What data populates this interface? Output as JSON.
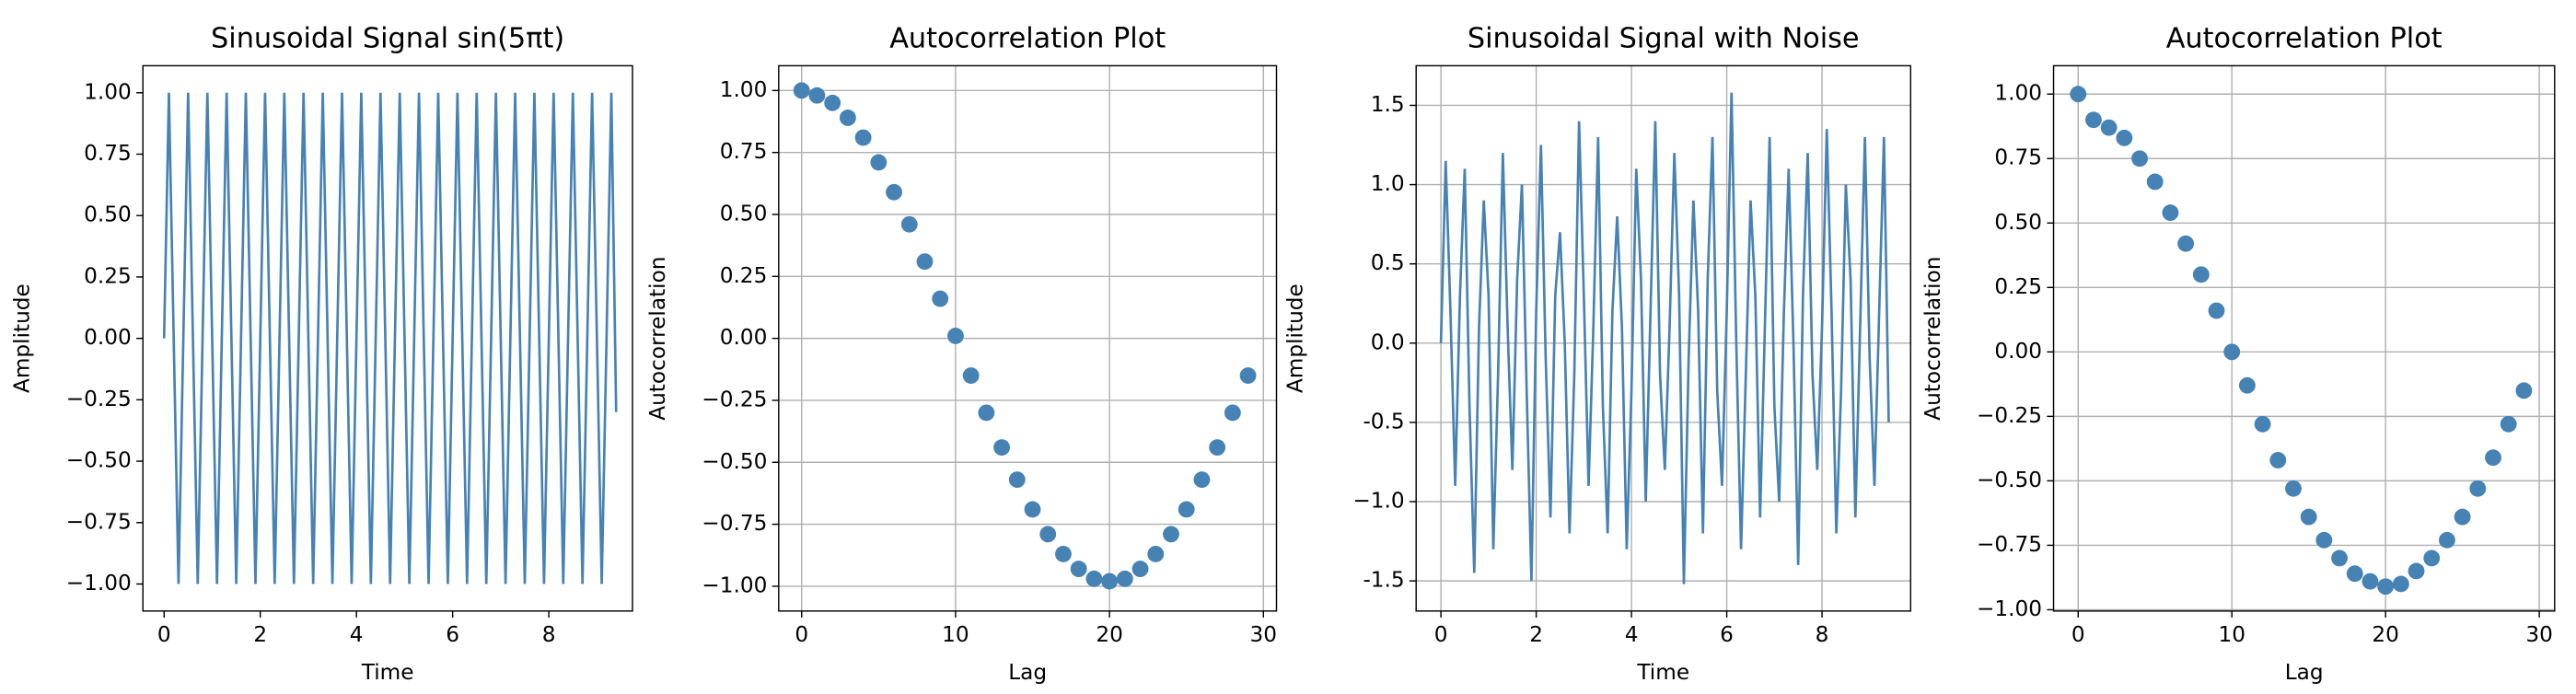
{
  "chart_data": [
    {
      "type": "line",
      "title": "Sinusoidal Signal sin(5πt)",
      "xlabel": "Time",
      "ylabel": "Amplitude",
      "color": "#4682b4",
      "grid": false,
      "x": [
        0,
        0.1,
        0.2,
        0.3,
        0.4,
        0.5,
        0.6,
        0.7,
        0.8,
        0.9,
        1,
        1.1,
        1.2,
        1.3,
        1.4,
        1.5,
        1.6,
        1.7,
        1.8,
        1.9,
        2,
        2.1,
        2.2,
        2.3,
        2.4,
        2.5,
        2.6,
        2.7,
        2.8,
        2.9,
        3,
        3.1,
        3.2,
        3.3,
        3.4,
        3.5,
        3.6,
        3.7,
        3.8,
        3.9,
        4,
        4.1,
        4.2,
        4.3,
        4.4,
        4.5,
        4.6,
        4.7,
        4.8,
        4.9,
        5,
        5.1,
        5.2,
        5.3,
        5.4,
        5.5,
        5.6,
        5.7,
        5.8,
        5.9,
        6,
        6.1,
        6.2,
        6.3,
        6.4,
        6.5,
        6.6,
        6.7,
        6.8,
        6.9,
        7,
        7.1,
        7.2,
        7.3,
        7.4,
        7.5,
        7.6,
        7.7,
        7.8,
        7.9,
        8,
        8.1,
        8.2,
        8.3,
        8.4,
        8.5,
        8.6,
        8.7,
        8.8,
        8.9,
        9,
        9.1,
        9.2,
        9.3,
        9.4
      ],
      "values": [
        0,
        1,
        0,
        -1,
        0,
        1,
        0,
        -1,
        0,
        1,
        0,
        -1,
        0,
        1,
        0,
        -1,
        0,
        1,
        0,
        -1,
        0,
        1,
        0,
        -1,
        0,
        1,
        0,
        -1,
        0,
        1,
        0,
        -1,
        0,
        1,
        0,
        -1,
        0,
        1,
        0,
        -1,
        0,
        1,
        0,
        -1,
        0,
        1,
        0,
        -1,
        0,
        1,
        0,
        -1,
        0,
        1,
        0,
        -1,
        0,
        1,
        0,
        -1,
        0,
        1,
        0,
        -1,
        0,
        1,
        0,
        -1,
        0,
        1,
        0,
        -1,
        0,
        1,
        0,
        -1,
        0,
        1,
        0,
        -1,
        0,
        1,
        0,
        -1,
        0,
        1,
        0,
        -1,
        0,
        1,
        0,
        -1,
        0,
        1,
        -0.3
      ],
      "xlim": [
        -0.44,
        9.74
      ],
      "ylim": [
        -1.11,
        1.11
      ],
      "xticks": [
        0,
        2,
        4,
        6,
        8
      ],
      "yticks": [
        {
          "value": -1,
          "label": "−1.00"
        },
        {
          "value": -0.75,
          "label": "−0.75"
        },
        {
          "value": -0.5,
          "label": "−0.50"
        },
        {
          "value": -0.25,
          "label": "−0.25"
        },
        {
          "value": 0,
          "label": "0.00"
        },
        {
          "value": 0.25,
          "label": "0.25"
        },
        {
          "value": 0.5,
          "label": "0.50"
        },
        {
          "value": 0.75,
          "label": "0.75"
        },
        {
          "value": 1,
          "label": "1.00"
        }
      ]
    },
    {
      "type": "scatter",
      "title": "Autocorrelation Plot",
      "xlabel": "Lag",
      "ylabel": "Autocorrelation",
      "color": "#4682b4",
      "grid": true,
      "x": [
        0,
        1,
        2,
        3,
        4,
        5,
        6,
        7,
        8,
        9,
        10,
        11,
        12,
        13,
        14,
        15,
        16,
        17,
        18,
        19,
        20,
        21,
        22,
        23,
        24,
        25,
        26,
        27,
        28,
        29
      ],
      "values": [
        1.0,
        0.98,
        0.95,
        0.89,
        0.81,
        0.71,
        0.59,
        0.46,
        0.31,
        0.16,
        0.01,
        -0.15,
        -0.3,
        -0.44,
        -0.57,
        -0.69,
        -0.79,
        -0.87,
        -0.93,
        -0.97,
        -0.98,
        -0.97,
        -0.93,
        -0.87,
        -0.79,
        -0.69,
        -0.57,
        -0.44,
        -0.3,
        -0.15
      ],
      "xlim": [
        -1.49,
        30.85
      ],
      "ylim": [
        -1.1,
        1.1
      ],
      "xticks": [
        0,
        10,
        20,
        30
      ],
      "yticks": [
        {
          "value": -1,
          "label": "−1.00"
        },
        {
          "value": -0.75,
          "label": "−0.75"
        },
        {
          "value": -0.5,
          "label": "−0.50"
        },
        {
          "value": -0.25,
          "label": "−0.25"
        },
        {
          "value": 0,
          "label": "0.00"
        },
        {
          "value": 0.25,
          "label": "0.25"
        },
        {
          "value": 0.5,
          "label": "0.50"
        },
        {
          "value": 0.75,
          "label": "0.75"
        },
        {
          "value": 1,
          "label": "1.00"
        }
      ]
    },
    {
      "type": "line",
      "title": "Sinusoidal Signal with Noise",
      "xlabel": "Time",
      "ylabel": "Amplitude",
      "color": "#4682b4",
      "grid": true,
      "x": [
        0,
        0.1,
        0.2,
        0.3,
        0.4,
        0.5,
        0.6,
        0.7,
        0.8,
        0.9,
        1,
        1.1,
        1.2,
        1.3,
        1.4,
        1.5,
        1.6,
        1.7,
        1.8,
        1.9,
        2,
        2.1,
        2.2,
        2.3,
        2.4,
        2.5,
        2.6,
        2.7,
        2.8,
        2.9,
        3,
        3.1,
        3.2,
        3.3,
        3.4,
        3.5,
        3.6,
        3.7,
        3.8,
        3.9,
        4,
        4.1,
        4.2,
        4.3,
        4.4,
        4.5,
        4.6,
        4.7,
        4.8,
        4.9,
        5,
        5.1,
        5.2,
        5.3,
        5.4,
        5.5,
        5.6,
        5.7,
        5.8,
        5.9,
        6,
        6.1,
        6.2,
        6.3,
        6.4,
        6.5,
        6.6,
        6.7,
        6.8,
        6.9,
        7,
        7.1,
        7.2,
        7.3,
        7.4,
        7.5,
        7.6,
        7.7,
        7.8,
        7.9,
        8,
        8.1,
        8.2,
        8.3,
        8.4,
        8.5,
        8.6,
        8.7,
        8.8,
        8.9,
        9,
        9.1,
        9.2,
        9.3,
        9.4
      ],
      "values": [
        0.0,
        1.15,
        0.2,
        -0.9,
        0.3,
        1.1,
        -0.4,
        -1.45,
        0.1,
        0.9,
        0.3,
        -1.3,
        -0.2,
        1.2,
        0.1,
        -0.8,
        0.4,
        1.0,
        -0.3,
        -1.5,
        0.2,
        1.25,
        -0.1,
        -1.1,
        0.3,
        0.7,
        0.0,
        -1.2,
        -0.2,
        1.4,
        0.3,
        -0.9,
        0.1,
        1.3,
        -0.4,
        -1.2,
        0.2,
        0.8,
        0.1,
        -1.3,
        -0.3,
        1.1,
        0.4,
        -1.0,
        0.2,
        1.4,
        -0.2,
        -0.8,
        0.1,
        1.2,
        0.3,
        -1.52,
        -0.1,
        0.9,
        0.2,
        -1.2,
        0.4,
        1.3,
        -0.3,
        -0.9,
        0.2,
        1.58,
        0.0,
        -1.3,
        -0.2,
        0.9,
        0.3,
        -1.1,
        0.1,
        1.3,
        -0.4,
        -1.0,
        0.2,
        1.1,
        0.0,
        -1.4,
        0.3,
        1.2,
        -0.2,
        -0.8,
        0.1,
        1.35,
        0.2,
        -1.2,
        -0.3,
        1.0,
        0.4,
        -1.1,
        0.1,
        1.3,
        -0.1,
        -0.9,
        0.2,
        1.3,
        -0.5
      ],
      "xlim": [
        -0.52,
        9.86
      ],
      "ylim": [
        -1.69,
        1.75
      ],
      "xticks": [
        0,
        2,
        4,
        6,
        8
      ],
      "yticks": [
        -1.5,
        {
          "value": -1,
          "label": "−1.0"
        },
        -0.5,
        {
          "value": 0,
          "label": "0.0"
        },
        0.5,
        {
          "value": 1,
          "label": "1.0"
        },
        1.5
      ]
    },
    {
      "type": "scatter",
      "title": "Autocorrelation Plot",
      "xlabel": "Lag",
      "ylabel": "Autocorrelation",
      "color": "#4682b4",
      "grid": true,
      "x": [
        0,
        1,
        2,
        3,
        4,
        5,
        6,
        7,
        8,
        9,
        10,
        11,
        12,
        13,
        14,
        15,
        16,
        17,
        18,
        19,
        20,
        21,
        22,
        23,
        24,
        25,
        26,
        27,
        28,
        29
      ],
      "values": [
        1.0,
        0.9,
        0.87,
        0.83,
        0.75,
        0.66,
        0.54,
        0.42,
        0.3,
        0.16,
        0.0,
        -0.13,
        -0.28,
        -0.42,
        -0.53,
        -0.64,
        -0.73,
        -0.8,
        -0.86,
        -0.89,
        -0.91,
        -0.9,
        -0.85,
        -0.8,
        -0.73,
        -0.64,
        -0.53,
        -0.41,
        -0.28,
        -0.15
      ],
      "xlim": [
        -1.6,
        31.0
      ],
      "ylim": [
        -1.005,
        1.11
      ],
      "xticks": [
        0,
        10,
        20,
        30
      ],
      "yticks": [
        {
          "value": -1,
          "label": "−1.00"
        },
        {
          "value": -0.75,
          "label": "−0.75"
        },
        {
          "value": -0.5,
          "label": "−0.50"
        },
        {
          "value": -0.25,
          "label": "−0.25"
        },
        {
          "value": 0,
          "label": "0.00"
        },
        {
          "value": 0.25,
          "label": "0.25"
        },
        {
          "value": 0.5,
          "label": "0.50"
        },
        {
          "value": 0.75,
          "label": "0.75"
        },
        {
          "value": 1,
          "label": "1.00"
        }
      ]
    }
  ]
}
